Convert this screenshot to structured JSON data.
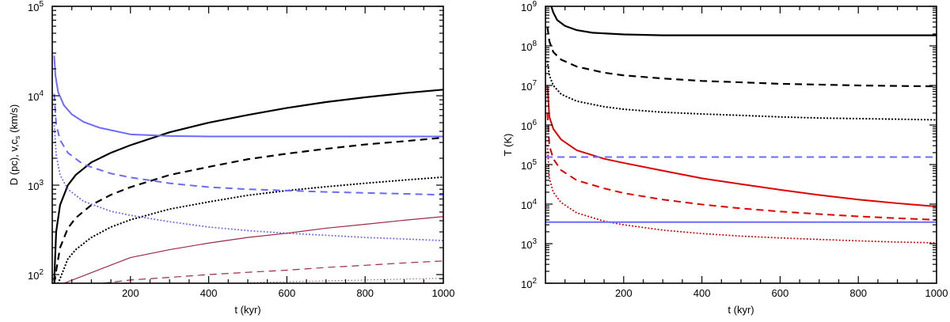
{
  "chart_data": [
    {
      "type": "line",
      "panel": "left",
      "xlabel": "t (kyr)",
      "ylabel_main": "D (pc), v,c",
      "ylabel_sub": "s",
      "ylabel_unit": " (km/s)",
      "yscale": "log",
      "xlim": [
        0,
        1000
      ],
      "ylim": [
        80,
        100000
      ],
      "xticks": [
        {
          "value": 200,
          "label": "200"
        },
        {
          "value": 400,
          "label": "400"
        },
        {
          "value": 600,
          "label": "600"
        },
        {
          "value": 800,
          "label": "800"
        },
        {
          "value": 1000,
          "label": "1000"
        }
      ],
      "yticks": [
        {
          "value": 100,
          "base": "10",
          "exp": "2"
        },
        {
          "value": 1000,
          "base": "10",
          "exp": "3"
        },
        {
          "value": 10000,
          "base": "10",
          "exp": "4"
        },
        {
          "value": 100000,
          "base": "10",
          "exp": "5"
        }
      ],
      "series": [
        {
          "name": "black-solid",
          "color": "#000000",
          "dash": "solid",
          "width": 2.2,
          "x": [
            5,
            10,
            20,
            40,
            60,
            100,
            150,
            200,
            300,
            400,
            500,
            600,
            700,
            800,
            900,
            1000
          ],
          "y": [
            85,
            300,
            600,
            1000,
            1300,
            1800,
            2300,
            2800,
            3900,
            5000,
            6100,
            7300,
            8500,
            9600,
            10700,
            11700
          ]
        },
        {
          "name": "black-dashed",
          "color": "#000000",
          "dash": "dashed",
          "width": 2.2,
          "x": [
            5,
            10,
            20,
            40,
            60,
            100,
            150,
            200,
            300,
            400,
            500,
            600,
            700,
            800,
            900,
            1000
          ],
          "y": [
            80,
            110,
            200,
            330,
            430,
            600,
            780,
            950,
            1300,
            1600,
            1950,
            2250,
            2550,
            2850,
            3100,
            3400
          ]
        },
        {
          "name": "black-dotted",
          "color": "#000000",
          "dash": "dotted",
          "width": 2.2,
          "x": [
            15,
            20,
            40,
            60,
            100,
            150,
            200,
            300,
            400,
            500,
            600,
            700,
            800,
            900,
            1000
          ],
          "y": [
            80,
            90,
            150,
            190,
            260,
            340,
            410,
            540,
            650,
            770,
            870,
            960,
            1050,
            1140,
            1230
          ]
        },
        {
          "name": "blue-solid",
          "color": "#6a6aff",
          "dash": "solid",
          "width": 2.0,
          "x": [
            5,
            8,
            15,
            30,
            50,
            80,
            120,
            200,
            300,
            400,
            500,
            600,
            700,
            800,
            900,
            1000
          ],
          "y": [
            28000,
            17000,
            11000,
            7800,
            6200,
            5100,
            4400,
            3700,
            3550,
            3500,
            3500,
            3500,
            3500,
            3500,
            3500,
            3500
          ]
        },
        {
          "name": "blue-dashed",
          "color": "#6a6aff",
          "dash": "dashed",
          "width": 2.0,
          "x": [
            5,
            10,
            20,
            40,
            80,
            150,
            200,
            300,
            400,
            500,
            600,
            700,
            800,
            900,
            1000
          ],
          "y": [
            10500,
            4800,
            3200,
            2300,
            1700,
            1350,
            1220,
            1050,
            950,
            900,
            870,
            840,
            820,
            800,
            780
          ]
        },
        {
          "name": "blue-dotted",
          "color": "#6a6aff",
          "dash": "dotted",
          "width": 2.0,
          "x": [
            5,
            10,
            20,
            40,
            80,
            150,
            200,
            300,
            400,
            500,
            600,
            700,
            800,
            900,
            1000
          ],
          "y": [
            5000,
            2200,
            1300,
            900,
            660,
            510,
            460,
            390,
            340,
            310,
            290,
            275,
            260,
            250,
            240
          ]
        },
        {
          "name": "maroon-solid",
          "color": "#9b2a45",
          "dash": "solid",
          "width": 1.2,
          "x": [
            30,
            100,
            200,
            300,
            400,
            500,
            600,
            700,
            800,
            900,
            1000
          ],
          "y": [
            80,
            105,
            155,
            190,
            225,
            260,
            290,
            330,
            365,
            405,
            445
          ]
        },
        {
          "name": "maroon-dashed",
          "color": "#9b2a45",
          "dash": "dashed",
          "width": 1.2,
          "x": [
            130,
            200,
            300,
            400,
            500,
            600,
            700,
            800,
            900,
            1000
          ],
          "y": [
            80,
            87,
            93,
            100,
            106,
            112,
            120,
            127,
            135,
            142
          ]
        },
        {
          "name": "maroon-dotted",
          "color": "#9b2a45",
          "dash": "dotted",
          "width": 1.2,
          "x": [
            500,
            600,
            700,
            800,
            900,
            1000
          ],
          "y": [
            81,
            83,
            85,
            87,
            89,
            91
          ]
        }
      ]
    },
    {
      "type": "line",
      "panel": "right",
      "xlabel": "t (kyr)",
      "ylabel_main": "T (K)",
      "yscale": "log",
      "xlim": [
        0,
        1000
      ],
      "ylim": [
        100,
        1000000000
      ],
      "xticks": [
        {
          "value": 200,
          "label": "200"
        },
        {
          "value": 400,
          "label": "400"
        },
        {
          "value": 600,
          "label": "600"
        },
        {
          "value": 800,
          "label": "800"
        },
        {
          "value": 1000,
          "label": "1000"
        }
      ],
      "yticks": [
        {
          "value": 100,
          "base": "10",
          "exp": "2"
        },
        {
          "value": 1000,
          "base": "10",
          "exp": "3"
        },
        {
          "value": 10000,
          "base": "10",
          "exp": "4"
        },
        {
          "value": 100000,
          "base": "10",
          "exp": "5"
        },
        {
          "value": 1000000,
          "base": "10",
          "exp": "6"
        },
        {
          "value": 10000000,
          "base": "10",
          "exp": "7"
        },
        {
          "value": 100000000,
          "base": "10",
          "exp": "8"
        },
        {
          "value": 1000000000,
          "base": "10",
          "exp": "9"
        }
      ],
      "series": [
        {
          "name": "black-solid",
          "color": "#000000",
          "dash": "solid",
          "width": 2.2,
          "x": [
            15,
            20,
            30,
            50,
            80,
            120,
            200,
            300,
            400,
            500,
            600,
            700,
            800,
            900,
            1000
          ],
          "y": [
            1000000000,
            700000000,
            450000000,
            320000000,
            250000000,
            215000000,
            195000000,
            185000000,
            185000000,
            185000000,
            185000000,
            185000000,
            185000000,
            185000000,
            185000000
          ]
        },
        {
          "name": "black-dashed",
          "color": "#000000",
          "dash": "dashed",
          "width": 2.2,
          "x": [
            5,
            10,
            20,
            40,
            80,
            150,
            200,
            300,
            400,
            500,
            600,
            700,
            800,
            900,
            1000
          ],
          "y": [
            300000000,
            130000000,
            70000000,
            45000000,
            30000000,
            21000000,
            18000000,
            15000000,
            13000000,
            12000000,
            11000000,
            10500000,
            10000000,
            9700000,
            9500000
          ]
        },
        {
          "name": "black-dotted",
          "color": "#000000",
          "dash": "dotted",
          "width": 2.2,
          "x": [
            5,
            10,
            20,
            40,
            80,
            150,
            200,
            300,
            400,
            500,
            600,
            700,
            800,
            900,
            1000
          ],
          "y": [
            40000000,
            18000000,
            10000000,
            6000000,
            4000000,
            2900000,
            2500000,
            2100000,
            1900000,
            1750000,
            1600000,
            1500000,
            1450000,
            1400000,
            1350000
          ]
        },
        {
          "name": "red-solid",
          "color": "#e00000",
          "dash": "solid",
          "width": 2.0,
          "x": [
            5,
            10,
            20,
            40,
            80,
            150,
            200,
            300,
            400,
            500,
            600,
            700,
            800,
            900,
            1000
          ],
          "y": [
            10000000,
            1600000,
            800000,
            430000,
            230000,
            140000,
            110000,
            70000,
            45000,
            32000,
            23000,
            17000,
            13000,
            10500,
            8700
          ]
        },
        {
          "name": "red-dashed",
          "color": "#e00000",
          "dash": "dashed",
          "width": 2.0,
          "x": [
            5,
            10,
            20,
            40,
            80,
            150,
            200,
            300,
            400,
            500,
            600,
            700,
            800,
            900,
            1000
          ],
          "y": [
            2000000,
            300000,
            140000,
            72000,
            40000,
            25000,
            19000,
            13000,
            9800,
            7800,
            6500,
            5600,
            4900,
            4400,
            4000
          ]
        },
        {
          "name": "red-dotted",
          "color": "#e00000",
          "dash": "dotted",
          "width": 2.0,
          "x": [
            5,
            10,
            20,
            40,
            80,
            150,
            200,
            300,
            400,
            500,
            600,
            700,
            800,
            900,
            1000
          ],
          "y": [
            300000,
            45000,
            20000,
            11000,
            6000,
            3700,
            3000,
            2200,
            1800,
            1550,
            1400,
            1280,
            1180,
            1100,
            1050
          ]
        },
        {
          "name": "blue-dashed",
          "color": "#6a6aff",
          "dash": "dashed",
          "width": 2.0,
          "x": [
            0,
            1000
          ],
          "y": [
            155000,
            155000
          ]
        },
        {
          "name": "blue-solid",
          "color": "#6a6aff",
          "dash": "solid",
          "width": 2.0,
          "x": [
            0,
            1000
          ],
          "y": [
            3500,
            3500
          ]
        }
      ]
    }
  ]
}
